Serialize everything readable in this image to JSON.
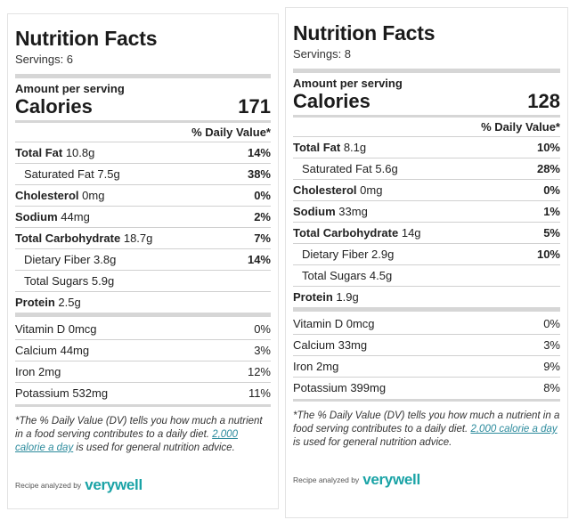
{
  "left": {
    "title": "Nutrition Facts",
    "servings": "Servings: 6",
    "amount_label": "Amount per serving",
    "calories_label": "Calories",
    "calories_value": "171",
    "dv_header": "% Daily Value*",
    "nutrients": [
      {
        "name": "Total Fat",
        "amount": "10.8g",
        "dv": "14%"
      },
      {
        "name": "Saturated Fat",
        "amount": "7.5g",
        "dv": "38%"
      },
      {
        "name": "Cholesterol",
        "amount": "0mg",
        "dv": "0%"
      },
      {
        "name": "Sodium",
        "amount": "44mg",
        "dv": "2%"
      },
      {
        "name": "Total Carbohydrate",
        "amount": "18.7g",
        "dv": "7%"
      },
      {
        "name": "Dietary Fiber",
        "amount": "3.8g",
        "dv": "14%"
      },
      {
        "name": "Total Sugars",
        "amount": "5.9g",
        "dv": ""
      },
      {
        "name": "Protein",
        "amount": "2.5g",
        "dv": ""
      }
    ],
    "vitamins": [
      {
        "name": "Vitamin D",
        "amount": "0mcg",
        "dv": "0%"
      },
      {
        "name": "Calcium",
        "amount": "44mg",
        "dv": "3%"
      },
      {
        "name": "Iron",
        "amount": "2mg",
        "dv": "12%"
      },
      {
        "name": "Potassium",
        "amount": "532mg",
        "dv": "11%"
      }
    ],
    "footnote_1": "*The % Daily Value (DV) tells you how much a nutrient in a food serving contributes to a daily diet. ",
    "footnote_link": "2,000 calorie a day",
    "footnote_2": " is used for general nutrition advice.",
    "analyzed_by": "Recipe analyzed by",
    "brand": "verywell"
  },
  "right": {
    "title": "Nutrition Facts",
    "servings": "Servings: 8",
    "amount_label": "Amount per serving",
    "calories_label": "Calories",
    "calories_value": "128",
    "dv_header": "% Daily Value*",
    "nutrients": [
      {
        "name": "Total Fat",
        "amount": "8.1g",
        "dv": "10%"
      },
      {
        "name": "Saturated Fat",
        "amount": "5.6g",
        "dv": "28%"
      },
      {
        "name": "Cholesterol",
        "amount": "0mg",
        "dv": "0%"
      },
      {
        "name": "Sodium",
        "amount": "33mg",
        "dv": "1%"
      },
      {
        "name": "Total Carbohydrate",
        "amount": "14g",
        "dv": "5%"
      },
      {
        "name": "Dietary Fiber",
        "amount": "2.9g",
        "dv": "10%"
      },
      {
        "name": "Total Sugars",
        "amount": "4.5g",
        "dv": ""
      },
      {
        "name": "Protein",
        "amount": "1.9g",
        "dv": ""
      }
    ],
    "vitamins": [
      {
        "name": "Vitamin D",
        "amount": "0mcg",
        "dv": "0%"
      },
      {
        "name": "Calcium",
        "amount": "33mg",
        "dv": "3%"
      },
      {
        "name": "Iron",
        "amount": "2mg",
        "dv": "9%"
      },
      {
        "name": "Potassium",
        "amount": "399mg",
        "dv": "8%"
      }
    ],
    "footnote_1": "*The % Daily Value (DV) tells you how much a nutrient in a food serving contributes to a daily diet. ",
    "footnote_link": "2,000 calorie a day",
    "footnote_2": " is used for general nutrition advice.",
    "analyzed_by": "Recipe analyzed by",
    "brand": "verywell"
  }
}
